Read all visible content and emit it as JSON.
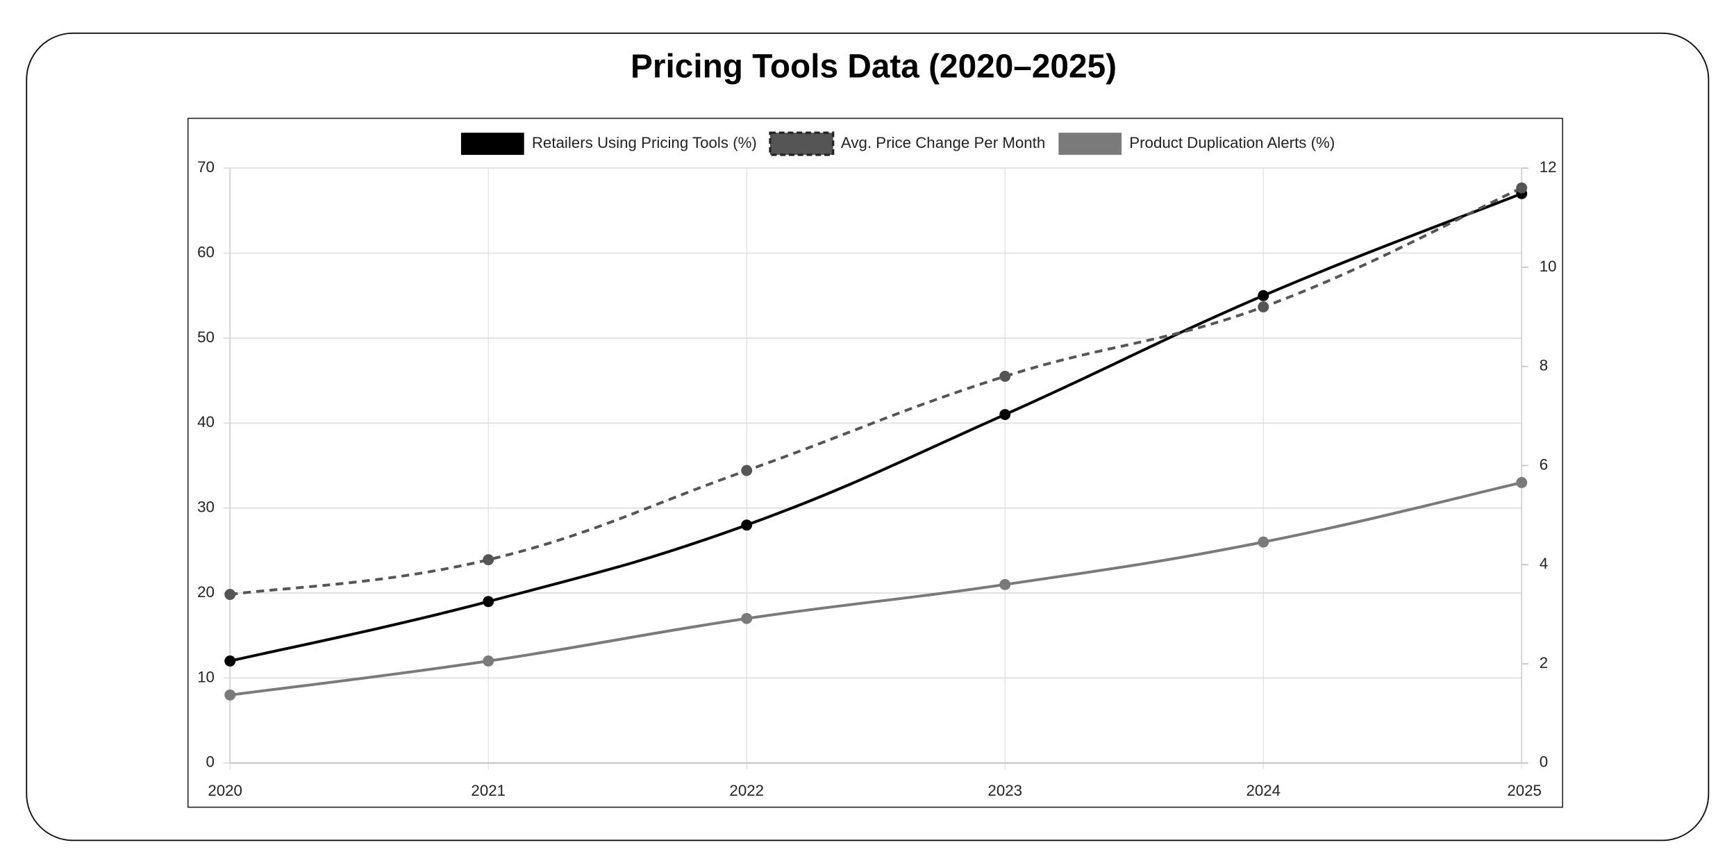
{
  "chart_data": {
    "type": "line",
    "title": "Pricing Tools Data (2020–2025)",
    "categories": [
      "2020",
      "2021",
      "2022",
      "2023",
      "2024",
      "2025"
    ],
    "series": [
      {
        "name": "Retailers Using Pricing Tools (%)",
        "color": "#000000",
        "dashed": false,
        "values": [
          12,
          19,
          28,
          41,
          55,
          67
        ]
      },
      {
        "name": "Avg. Price Change Per Month",
        "color": "#555555",
        "dashed": true,
        "axis": "y2",
        "values": [
          3.4,
          4.1,
          5.9,
          7.8,
          9.2,
          11.6
        ]
      },
      {
        "name": "Product Duplication Alerts (%)",
        "color": "#7a7a7a",
        "dashed": false,
        "values": [
          8,
          12,
          17,
          21,
          26,
          33
        ]
      }
    ],
    "ylim": [
      0,
      70
    ],
    "yticks": [
      0,
      10,
      20,
      30,
      40,
      50,
      60,
      70
    ],
    "y2lim": [
      0,
      12
    ],
    "y2ticks": [
      0,
      2,
      4,
      6,
      8,
      10,
      12
    ],
    "grid": true,
    "legend": "top"
  }
}
